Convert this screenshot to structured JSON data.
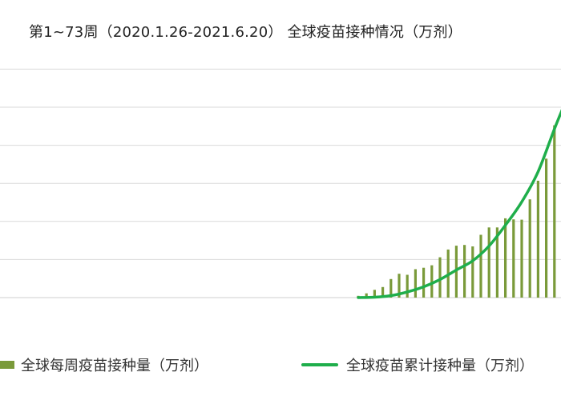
{
  "chart_data": {
    "type": "bar+line",
    "title": "第1~73周（2020.1.26-2021.6.20） 全球疫苗接种情况（万剂）",
    "x": {
      "weeks_first": 1,
      "weeks_last": 73
    },
    "series": [
      {
        "name": "全球每周疫苗接种量（万剂）",
        "type": "bar",
        "color": "#7a9a3a",
        "weeks": [
          48,
          49,
          50,
          51,
          52,
          53,
          54,
          55,
          56,
          57,
          58,
          59,
          60,
          61,
          62,
          63,
          64,
          65,
          66,
          67,
          68,
          69,
          70,
          71,
          72,
          73
        ],
        "values": [
          50,
          120,
          220,
          300,
          530,
          680,
          650,
          810,
          850,
          920,
          1150,
          1370,
          1480,
          1500,
          1460,
          1790,
          2000,
          2000,
          2260,
          2230,
          2220,
          2800,
          3330,
          3960,
          4910,
          5380
        ]
      },
      {
        "name": "全球疫苗累计接种量（万剂）",
        "type": "line",
        "color": "#1fae4b",
        "weeks": [
          48,
          50,
          52,
          54,
          56,
          58,
          60,
          62,
          64,
          66,
          68,
          70,
          72,
          73
        ],
        "values": [
          0,
          60,
          320,
          900,
          1720,
          2870,
          4380,
          5850,
          8200,
          11500,
          15200,
          20000,
          26800,
          30000
        ]
      }
    ],
    "gridlines": true,
    "legend_position": "bottom"
  }
}
